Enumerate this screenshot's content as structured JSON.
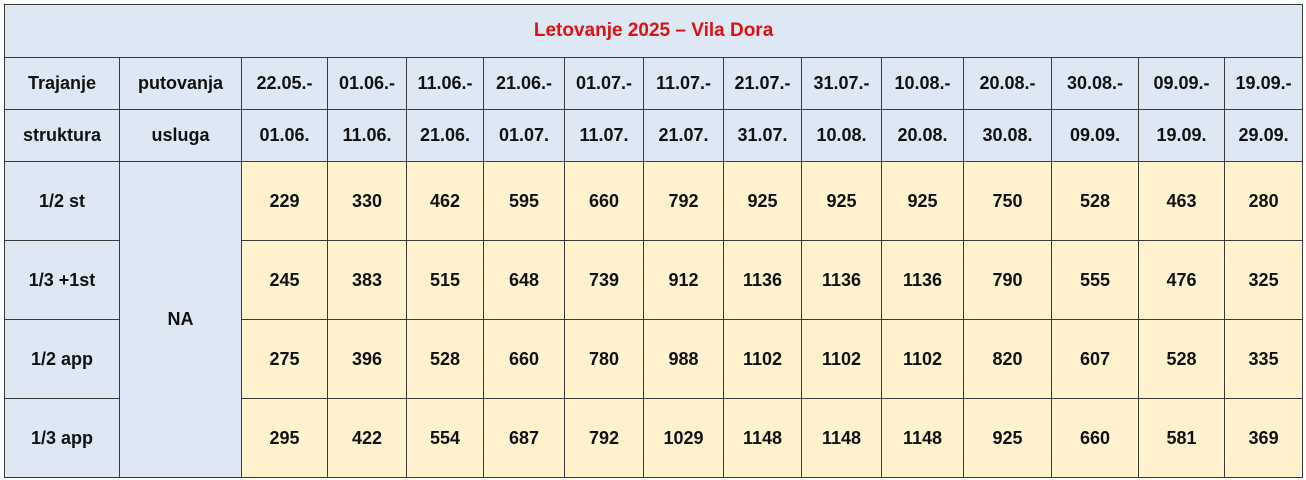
{
  "title": "Letovanje 2025 – Vila Dora",
  "header": {
    "row1_col1": "Trajanje",
    "row1_col2": "putovanja",
    "row2_col1": "struktura",
    "row2_col2": "usluga",
    "periods": [
      {
        "from": "22.05.-",
        "to": "01.06."
      },
      {
        "from": "01.06.-",
        "to": "11.06."
      },
      {
        "from": "11.06.-",
        "to": "21.06."
      },
      {
        "from": "21.06.-",
        "to": "01.07."
      },
      {
        "from": "01.07.-",
        "to": "11.07."
      },
      {
        "from": "11.07.-",
        "to": "21.07."
      },
      {
        "from": "21.07.-",
        "to": "31.07."
      },
      {
        "from": "31.07.-",
        "to": "10.08."
      },
      {
        "from": "10.08.-",
        "to": "20.08."
      },
      {
        "from": "20.08.-",
        "to": "30.08."
      },
      {
        "from": "30.08.-",
        "to": "09.09."
      },
      {
        "from": "09.09.-",
        "to": "19.09."
      },
      {
        "from": "19.09.-",
        "to": "29.09."
      }
    ]
  },
  "service": "NA",
  "rows": [
    {
      "structure": "1/2 st",
      "prices": [
        "229",
        "330",
        "462",
        "595",
        "660",
        "792",
        "925",
        "925",
        "925",
        "750",
        "528",
        "463",
        "280"
      ]
    },
    {
      "structure": "1/3 +1st",
      "prices": [
        "245",
        "383",
        "515",
        "648",
        "739",
        "912",
        "1136",
        "1136",
        "1136",
        "790",
        "555",
        "476",
        "325"
      ]
    },
    {
      "structure": "1/2 app",
      "prices": [
        "275",
        "396",
        "528",
        "660",
        "780",
        "988",
        "1102",
        "1102",
        "1102",
        "820",
        "607",
        "528",
        "335"
      ]
    },
    {
      "structure": "1/3 app",
      "prices": [
        "295",
        "422",
        "554",
        "687",
        "792",
        "1029",
        "1148",
        "1148",
        "1148",
        "925",
        "660",
        "581",
        "369"
      ]
    }
  ]
}
